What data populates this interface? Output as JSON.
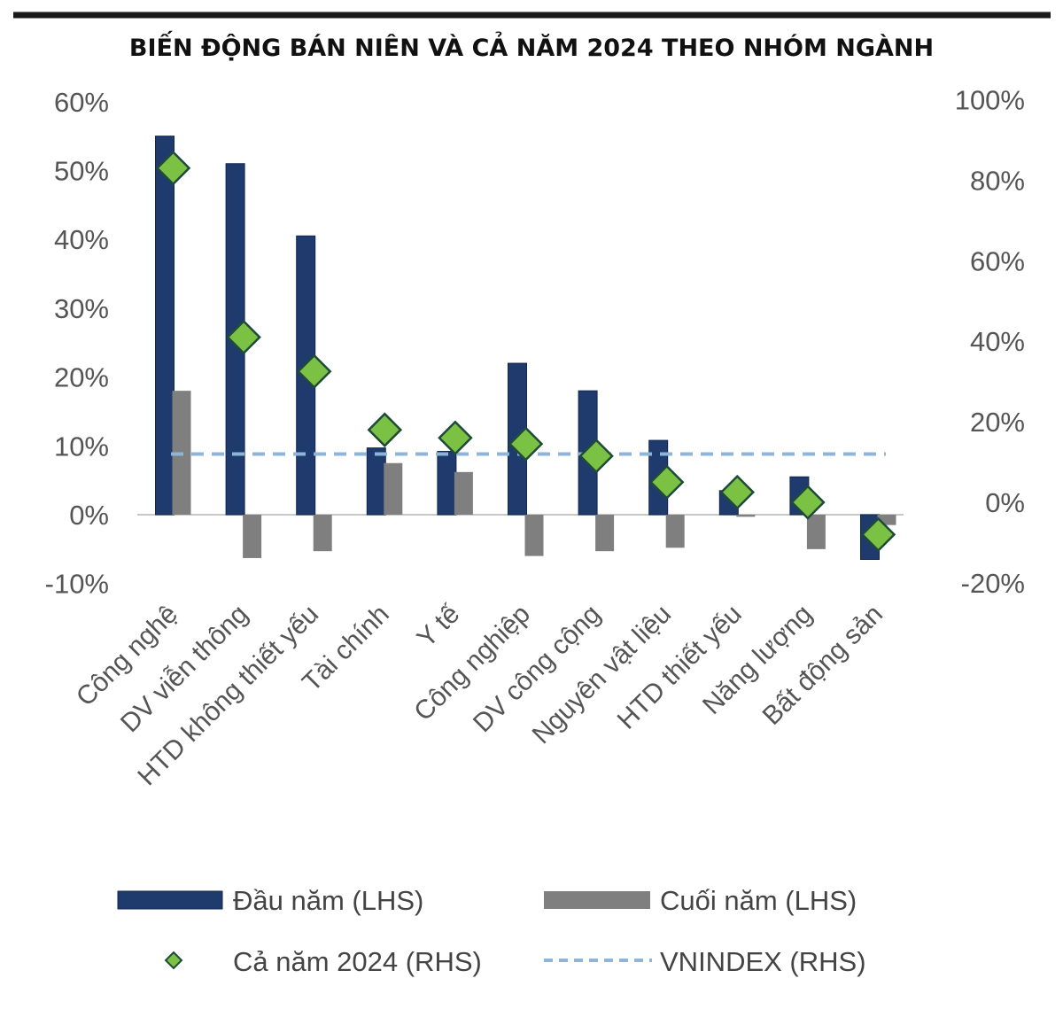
{
  "chart_data": {
    "type": "bar",
    "title": "BIẾN ĐỘNG BÁN NIÊN VÀ CẢ NĂM 2024 THEO NHÓM NGÀNH",
    "categories": [
      "Công nghệ",
      "DV viễn thông",
      "HTD không thiết yếu",
      "Tài chính",
      "Y tế",
      "Công nghiệp",
      "DV công cộng",
      "Nguyên vật liệu",
      "HTD thiết yếu",
      "Năng lượng",
      "Bất động sản"
    ],
    "y_left": {
      "ylim": [
        -10,
        60
      ],
      "ticks": [
        60,
        50,
        40,
        30,
        20,
        10,
        0,
        -10
      ],
      "tick_labels": [
        "60%",
        "50%",
        "40%",
        "30%",
        "20%",
        "10%",
        "0%",
        "-10%"
      ]
    },
    "y_right": {
      "ylim": [
        -20,
        100
      ],
      "ticks": [
        100,
        80,
        60,
        40,
        20,
        0,
        -20
      ],
      "tick_labels": [
        "100%",
        "80%",
        "60%",
        "40%",
        "20%",
        "0%",
        "-20%"
      ]
    },
    "series": [
      {
        "name": "Đầu năm (LHS)",
        "type": "bar",
        "axis": "left",
        "color": "#1f3b6e",
        "values": [
          55,
          51,
          40.5,
          9.7,
          9.2,
          22,
          18,
          10.8,
          3.5,
          5.5,
          -6.5
        ]
      },
      {
        "name": "Cuối năm (LHS)",
        "type": "bar",
        "axis": "left",
        "color": "#7f7f7f",
        "values": [
          18,
          -6.3,
          -5.3,
          7.5,
          6.2,
          -6,
          -5.3,
          -4.8,
          -0.3,
          -5,
          -1.5
        ]
      },
      {
        "name": "Cả năm 2024 (RHS)",
        "type": "scatter",
        "axis": "right",
        "color": "#7bc143",
        "values": [
          83,
          41,
          32.5,
          18,
          16,
          14.5,
          11.5,
          5,
          2.5,
          0,
          -8
        ]
      },
      {
        "name": "VNINDEX (RHS)",
        "type": "hline",
        "axis": "right",
        "color": "#8fb4d9",
        "value": 12
      }
    ],
    "legend": {
      "position": "bottom"
    },
    "grid": false
  }
}
